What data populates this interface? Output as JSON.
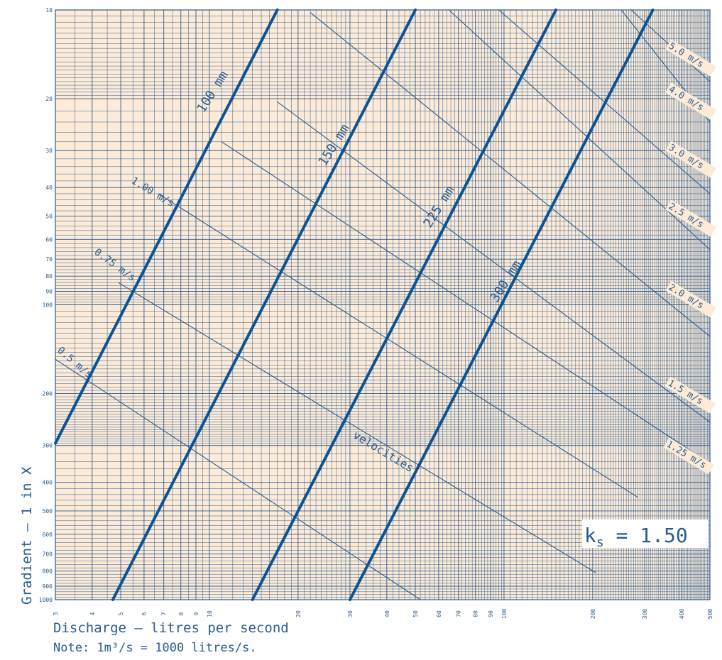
{
  "chart_data": {
    "type": "line",
    "title": "",
    "xlabel": "Discharge – litres per second",
    "ylabel": "Gradient – 1 in X",
    "note": "Note: 1m³/s = 1000 litres/s.",
    "ks_label": "k",
    "ks_sub": "s",
    "ks_value": " = 1.50",
    "x_scale": "log",
    "y_scale": "log",
    "xlim": [
      3,
      500
    ],
    "ylim": [
      10,
      1000
    ],
    "y_inverted": true,
    "grid": true,
    "x_ticks": [
      3,
      4,
      5,
      6,
      7,
      8,
      9,
      10,
      20,
      30,
      40,
      50,
      60,
      70,
      80,
      90,
      100,
      200,
      300,
      400,
      500
    ],
    "y_ticks": [
      10,
      20,
      30,
      40,
      50,
      60,
      70,
      80,
      90,
      100,
      200,
      300,
      400,
      500,
      600,
      700,
      800,
      900,
      1000
    ],
    "pipe_series": [
      {
        "name": "100 mm",
        "points": [
          [
            3.0,
            295
          ],
          [
            17.0,
            10.0
          ]
        ]
      },
      {
        "name": "150 mm",
        "points": [
          [
            4.7,
            1000
          ],
          [
            50.0,
            10.0
          ]
        ]
      },
      {
        "name": "225 mm",
        "points": [
          [
            14.0,
            1000
          ],
          [
            150.0,
            10.0
          ]
        ]
      },
      {
        "name": "300 mm",
        "points": [
          [
            30.0,
            1000
          ],
          [
            320.0,
            10.0
          ]
        ]
      }
    ],
    "velocity_series": [
      {
        "name": "0.5 m/s",
        "points": [
          [
            3.0,
            153
          ],
          [
            52.0,
            1000
          ]
        ]
      },
      {
        "name": "0.75 m/s",
        "points": [
          [
            4.9,
            84
          ],
          [
            205.0,
            810
          ]
        ]
      },
      {
        "name": "1.00 m/s",
        "points": [
          [
            6.7,
            42
          ],
          [
            285.0,
            450
          ]
        ]
      },
      {
        "name": "1.25 m/s",
        "points": [
          [
            11.0,
            28
          ],
          [
            500.0,
            345
          ]
        ]
      },
      {
        "name": "1.5 m/s",
        "points": [
          [
            17.0,
            20.5
          ],
          [
            500.0,
            250
          ]
        ]
      },
      {
        "name": "2.0 m/s",
        "points": [
          [
            22.0,
            10.2
          ],
          [
            500.0,
            128
          ]
        ]
      },
      {
        "name": "2.5 m/s",
        "points": [
          [
            65.0,
            10.0
          ],
          [
            500.0,
            65
          ]
        ]
      },
      {
        "name": "3.0 m/s",
        "points": [
          [
            96.0,
            10.0
          ],
          [
            500.0,
            42
          ]
        ]
      },
      {
        "name": "4.0 m/s",
        "points": [
          [
            250.0,
            10.0
          ],
          [
            500.0,
            24
          ]
        ]
      },
      {
        "name": "5.0 m/s",
        "points": [
          [
            270.0,
            10.0
          ],
          [
            500.0,
            17.5
          ]
        ]
      }
    ],
    "annotations": [
      {
        "text": "velocities",
        "x": 30.0,
        "y": 275
      }
    ],
    "colors": {
      "background": "#fdebd8",
      "grid": "#2a5c8f",
      "pipe_line": "#0b5394",
      "velocity_line": "#2a5c8f",
      "text": "#2a5c8f"
    }
  }
}
